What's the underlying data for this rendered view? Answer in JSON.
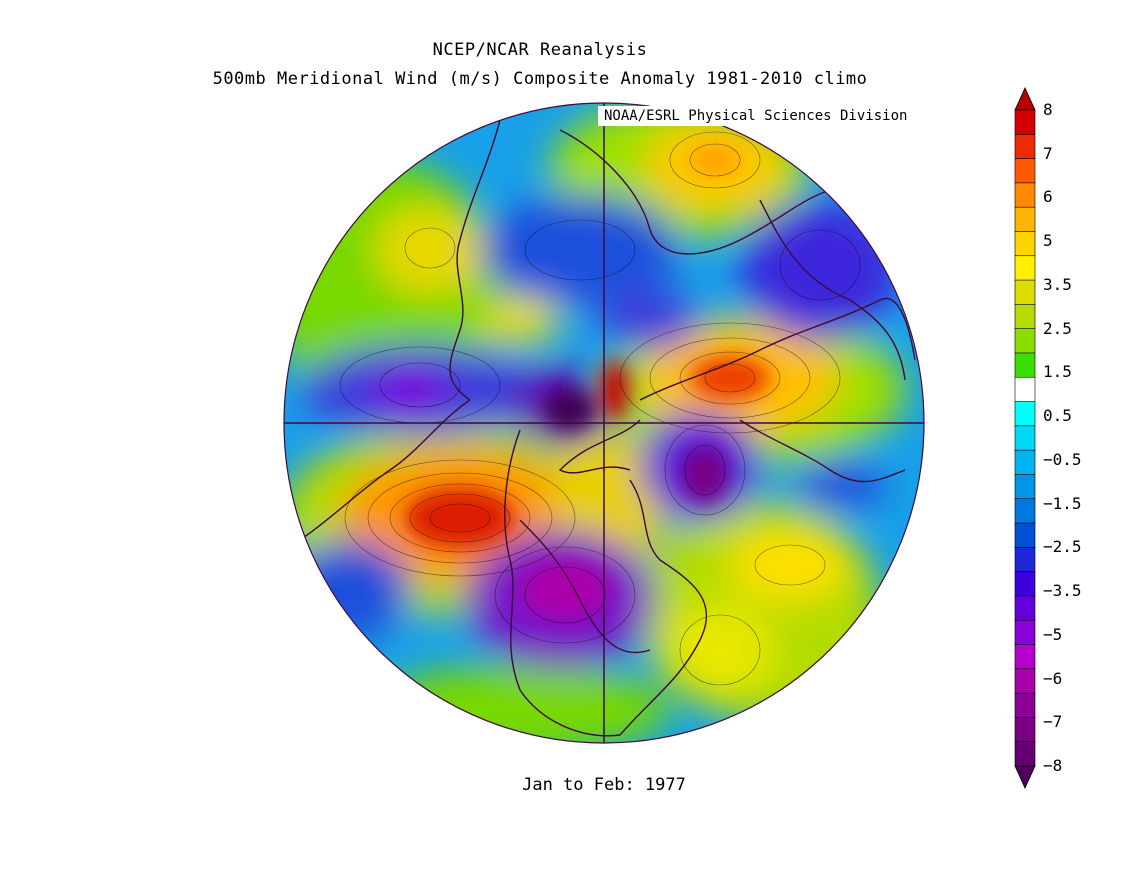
{
  "header": {
    "title": "NCEP/NCAR Reanalysis",
    "subtitle": "500mb Meridional Wind (m/s) Composite Anomaly 1981-2010 climo",
    "credit": "NOAA/ESRL Physical Sciences Division"
  },
  "caption": "Jan to Feb: 1977",
  "map": {
    "projection": "north-polar-stereographic",
    "grid_lines": [
      "vertical-meridian",
      "horizontal-meridian"
    ]
  },
  "colorbar": {
    "labels": [
      "8",
      "7",
      "6",
      "5",
      "3.5",
      "2.5",
      "1.5",
      "0.5",
      "−0.5",
      "−1.5",
      "−2.5",
      "−3.5",
      "−5",
      "−6",
      "−7",
      "−8"
    ],
    "colors": [
      "#d40000",
      "#ee2a00",
      "#ff5a00",
      "#ff8a00",
      "#ffb400",
      "#ffd400",
      "#fff000",
      "#dcdc00",
      "#b4dc00",
      "#8cdc00",
      "#3ce000",
      "#ffffff",
      "#00ffff",
      "#00d8f8",
      "#00b4f0",
      "#0096e8",
      "#0078dc",
      "#0050d8",
      "#1e28d8",
      "#3c00dc",
      "#6400dc",
      "#8c00dc",
      "#b400c8",
      "#aa00aa",
      "#8c0096",
      "#780082",
      "#640070"
    ],
    "over_color": "#b40000",
    "under_color": "#50005a"
  }
}
